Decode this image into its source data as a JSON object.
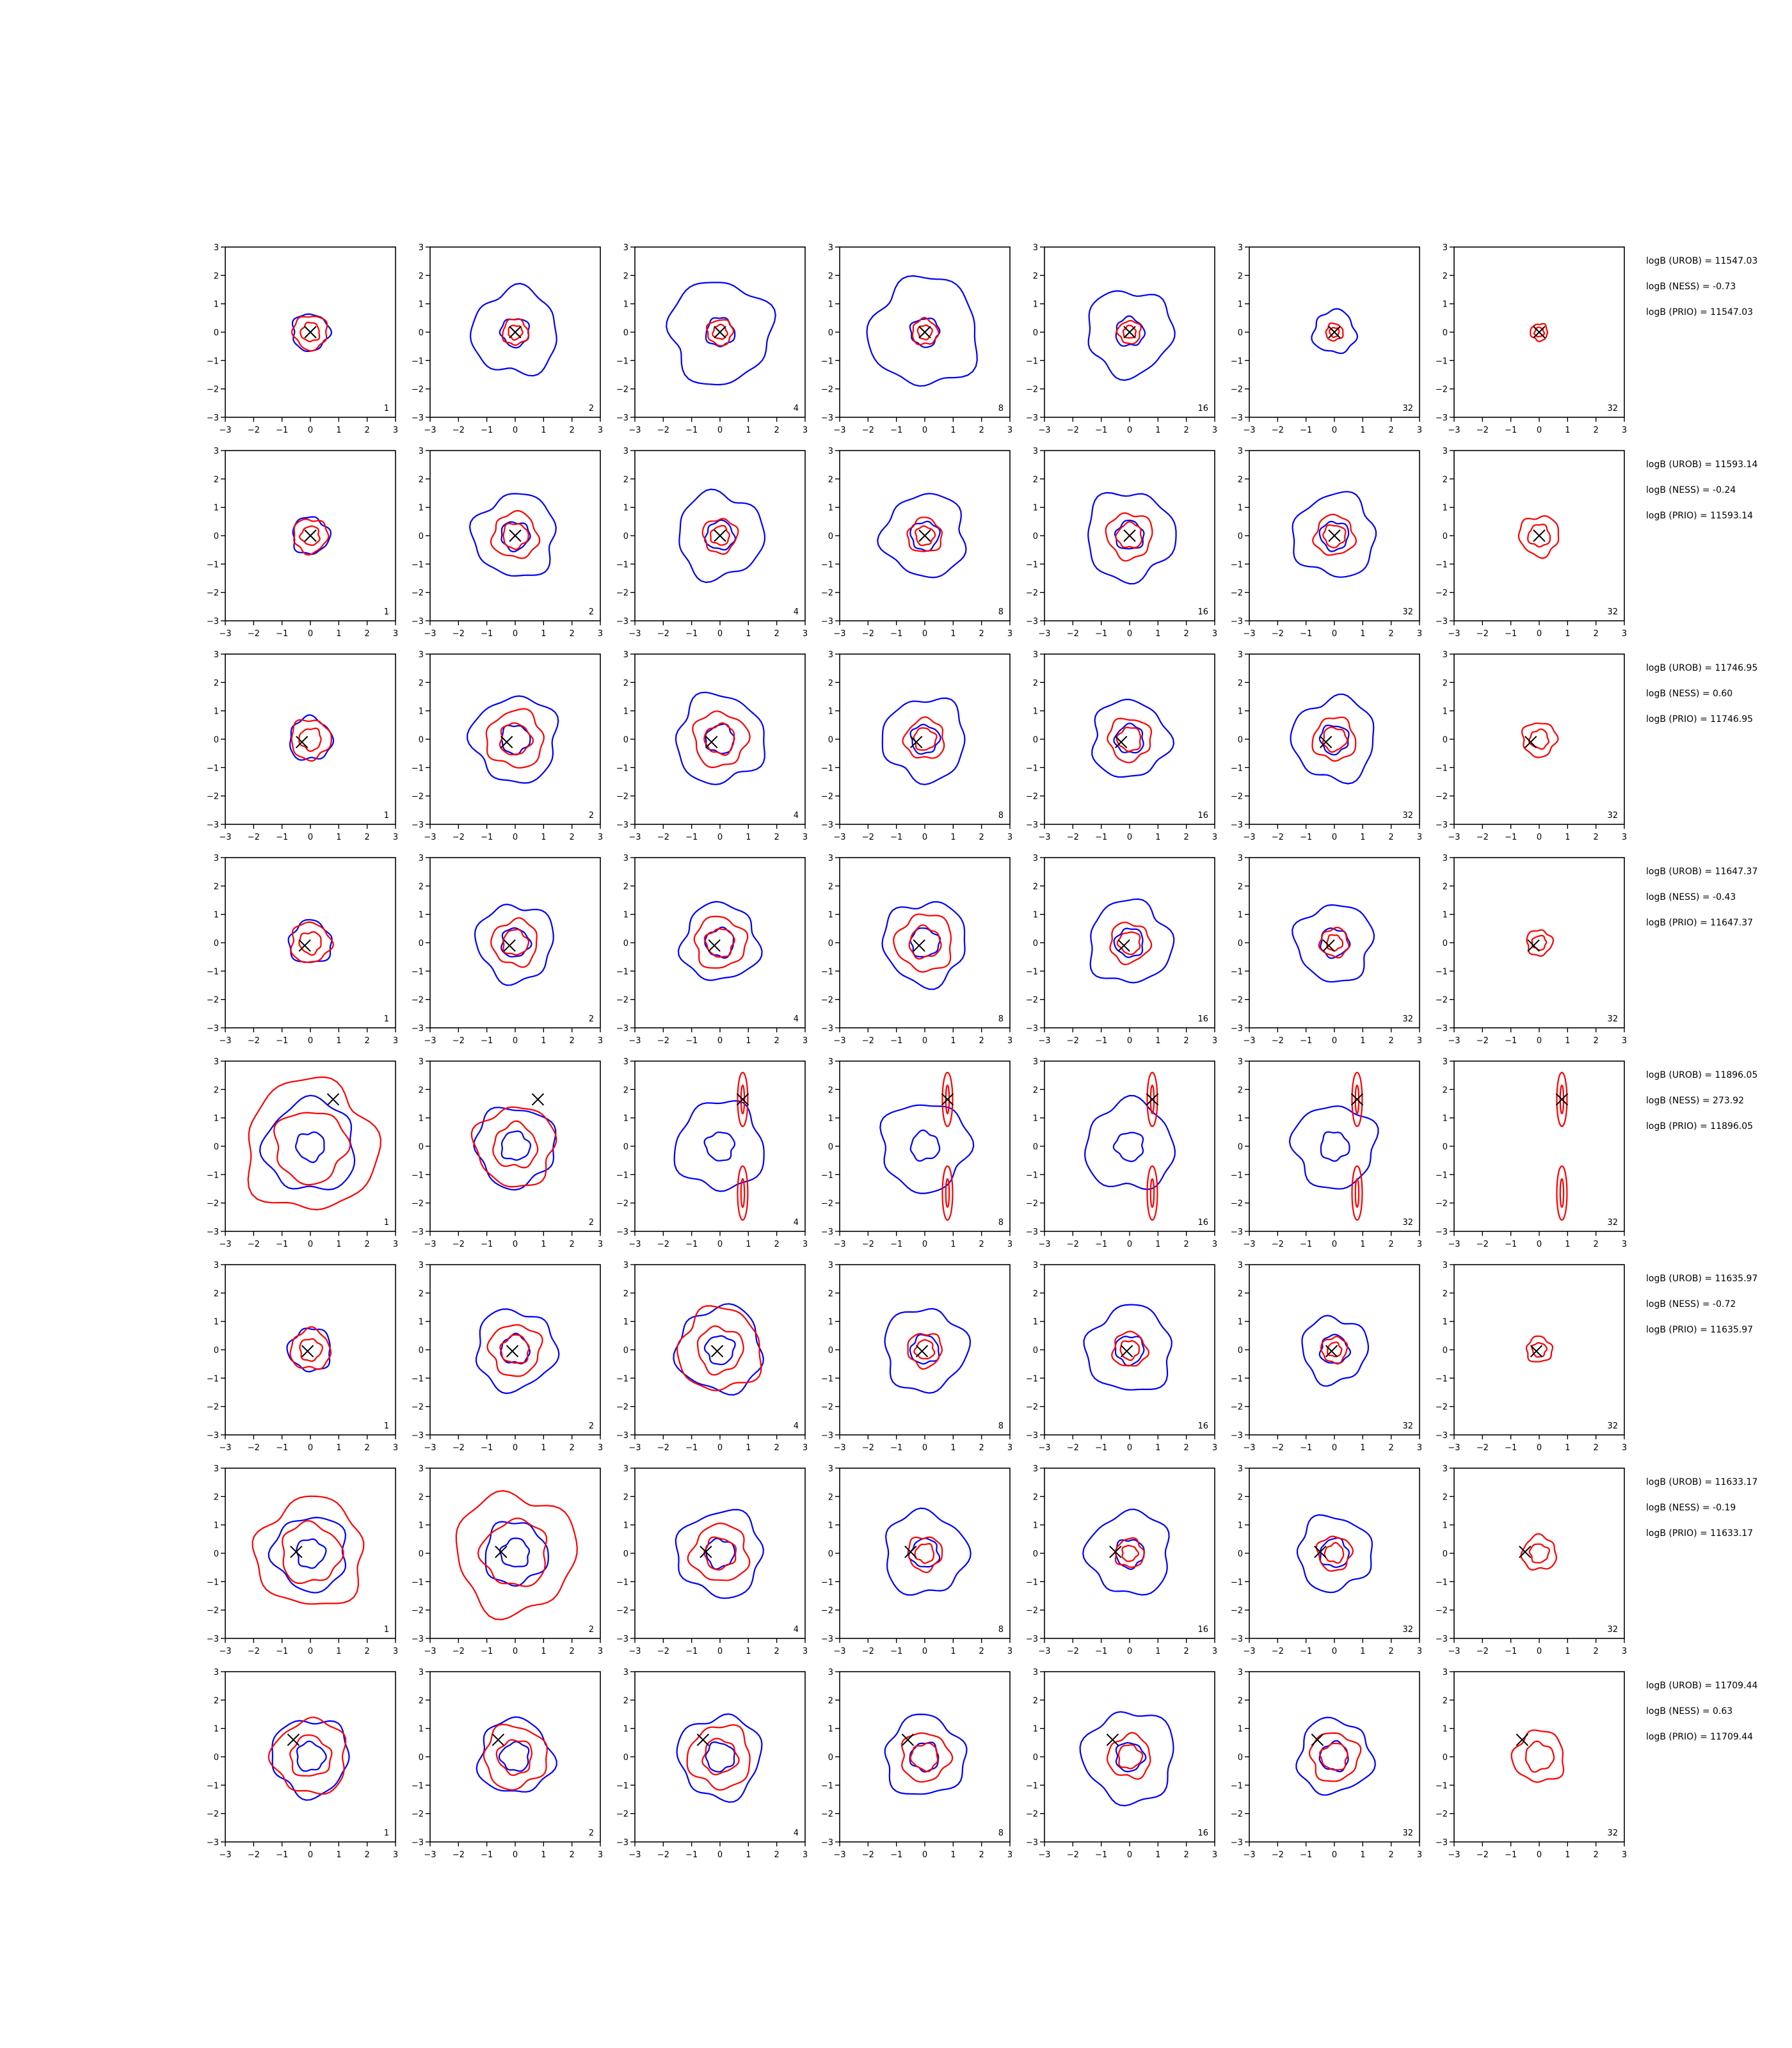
{
  "chart_data": {
    "type": "contour",
    "grid": false,
    "legend": "none",
    "colors": {
      "group_a": "#0000ff",
      "group_b": "#ff0000",
      "marker": "#000000"
    },
    "axis": {
      "xlim": [
        -3,
        3
      ],
      "ylim": [
        -3,
        3
      ],
      "ticks": [
        "−3",
        "−2",
        "−1",
        "0",
        "1",
        "2",
        "3"
      ]
    },
    "columns": [
      {
        "label": "1",
        "estimate": true
      },
      {
        "label": "2",
        "estimate": true
      },
      {
        "label": "4",
        "estimate": true
      },
      {
        "label": "8",
        "estimate": true
      },
      {
        "label": "16",
        "estimate": true
      },
      {
        "label": "32",
        "estimate": true
      },
      {
        "label": "32",
        "estimate": false
      }
    ],
    "rows": [
      {
        "marker": [
          0.0,
          0.0
        ],
        "stats": [
          "logB (UROB) = 11547.03",
          "logB (NESS) = -0.73",
          "logB (PRIO) = 11547.03"
        ],
        "blue": [
          [
            0.65,
            1.5,
            1.8,
            1.9,
            1.5,
            0.75
          ]
        ],
        "red": [
          [
            0.6,
            0.45,
            0.45,
            0.45,
            0.4,
            0.3,
            0.3
          ]
        ]
      },
      {
        "marker": [
          0.0,
          0.0
        ],
        "stats": [
          "logB (UROB) = 11593.14",
          "logB (NESS) = -0.24",
          "logB (PRIO) = 11593.14"
        ],
        "blue": [
          [
            0.65,
            1.45,
            1.5,
            1.45,
            1.55,
            1.45
          ]
        ],
        "red": [
          [
            0.6,
            0.8,
            0.6,
            0.6,
            0.8,
            0.7,
            0.7
          ]
        ]
      },
      {
        "marker": [
          -0.3,
          -0.1
        ],
        "stats": [
          "logB (UROB) = 11746.95",
          "logB (NESS) = 0.60",
          "logB (PRIO) = 11746.95"
        ],
        "blue": [
          [
            0.75,
            1.5,
            1.55,
            1.45,
            1.35,
            1.45
          ]
        ],
        "red": [
          [
            0.7,
            1.0,
            0.95,
            0.7,
            0.75,
            0.75,
            0.6
          ]
        ]
      },
      {
        "marker": [
          -0.2,
          -0.1
        ],
        "stats": [
          "logB (UROB) = 11647.37",
          "logB (NESS) = -0.43",
          "logB (PRIO) = 11647.37"
        ],
        "blue": [
          [
            0.75,
            1.35,
            1.35,
            1.45,
            1.45,
            1.35
          ]
        ],
        "red": [
          [
            0.7,
            0.8,
            0.9,
            1.0,
            0.7,
            0.5,
            0.45
          ]
        ]
      },
      {
        "marker": [
          0.8,
          1.65
        ],
        "stats": [
          "logB (UROB) = 11896.05",
          "logB (NESS) = 273.92",
          "logB (PRIO) = 11896.05"
        ],
        "blue": [
          [
            1.6,
            1.4,
            1.55,
            1.55,
            1.55,
            1.45
          ]
        ],
        "red": [
          [
            2.3,
            1.4,
            0.2,
            0.15,
            0.12,
            0.12,
            0.12
          ]
        ]
      },
      {
        "marker": [
          -0.1,
          -0.05
        ],
        "stats": [
          "logB (UROB) = 11635.97",
          "logB (NESS) = -0.72",
          "logB (PRIO) = 11635.97"
        ],
        "blue": [
          [
            0.75,
            1.4,
            1.5,
            1.45,
            1.5,
            1.15
          ]
        ],
        "red": [
          [
            0.7,
            0.9,
            1.45,
            0.6,
            0.6,
            0.45,
            0.45
          ]
        ]
      },
      {
        "marker": [
          -0.5,
          0.05
        ],
        "stats": [
          "logB (UROB) = 11633.17",
          "logB (NESS) = -0.19",
          "logB (PRIO) = 11633.17"
        ],
        "blue": [
          [
            1.3,
            1.1,
            1.5,
            1.45,
            1.45,
            1.3
          ]
        ],
        "red": [
          [
            1.9,
            2.1,
            1.0,
            0.6,
            0.5,
            0.6,
            0.6
          ]
        ]
      },
      {
        "marker": [
          -0.6,
          0.6
        ],
        "stats": [
          "logB (UROB) = 11709.44",
          "logB (NESS) = 0.63",
          "logB (PRIO) = 11709.44"
        ],
        "blue": [
          [
            1.35,
            1.3,
            1.45,
            1.4,
            1.6,
            1.3
          ]
        ],
        "red": [
          [
            1.3,
            1.1,
            1.1,
            0.85,
            0.75,
            0.85,
            0.9
          ]
        ]
      }
    ]
  }
}
